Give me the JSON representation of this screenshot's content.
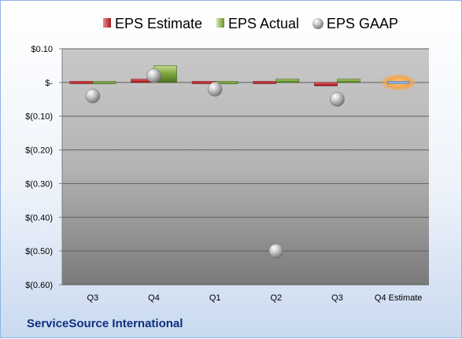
{
  "company_name": "ServiceSource International",
  "colors": {
    "estimate": "#c0282d",
    "actual": "#7aa53a",
    "gaap": "#a6a6a6",
    "highlight": "#f5a54a",
    "title": "#0f2f7f"
  },
  "chart_data": {
    "type": "bar",
    "categories": [
      "Q3",
      "Q4",
      "Q1",
      "Q2",
      "Q3",
      "Q4 Estimate"
    ],
    "series": [
      {
        "name": "EPS Estimate",
        "values": [
          0.0,
          0.01,
          0.0,
          0.0,
          -0.01,
          0.0
        ]
      },
      {
        "name": "EPS Actual",
        "values": [
          0.0,
          0.05,
          0.0,
          0.01,
          0.01,
          null
        ]
      },
      {
        "name": "EPS GAAP",
        "values": [
          -0.04,
          0.02,
          -0.02,
          -0.5,
          -0.05,
          null
        ]
      }
    ],
    "ylim": [
      -0.6,
      0.1
    ],
    "yticks": [
      0.1,
      0.0,
      -0.1,
      -0.2,
      -0.3,
      -0.4,
      -0.5,
      -0.6
    ],
    "ytick_labels": [
      "$0.10",
      "$-",
      "$(0.10)",
      "$(0.20)",
      "$(0.30)",
      "$(0.40)",
      "$(0.50)",
      "$(0.60)"
    ],
    "legend_position": "top",
    "grid": true,
    "highlighted_category": "Q4 Estimate"
  }
}
